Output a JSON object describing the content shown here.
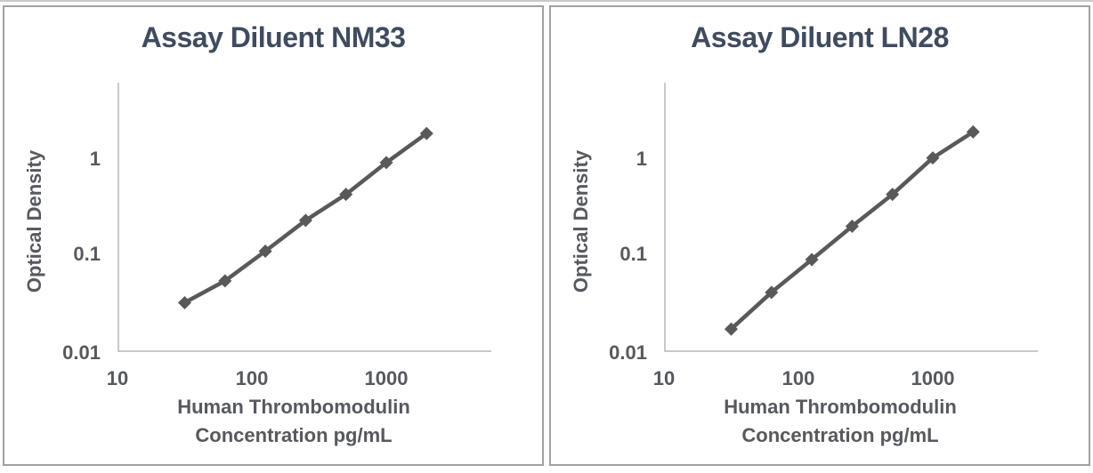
{
  "page": {
    "background": "#ffffff",
    "panel_border_color": "#a1a1a1"
  },
  "colors": {
    "series": "#595959",
    "axis_line": "#b7b7b7",
    "title_text": "#3f4b5e",
    "tick_text": "#56595e"
  },
  "chart_data": [
    {
      "type": "line",
      "title": "Assay Diluent NM33",
      "ylabel": "Optical Density",
      "xlabel_line1": "Human Thrombomodulin",
      "xlabel_line2": "Concentration pg/mL",
      "x_scale": "log",
      "y_scale": "log",
      "x": [
        31.25,
        62.5,
        125,
        250,
        500,
        1000,
        2000
      ],
      "values": [
        0.032,
        0.054,
        0.11,
        0.23,
        0.43,
        0.92,
        1.85
      ],
      "x_ticks": [
        "10",
        "100",
        "1000"
      ],
      "y_ticks": [
        "1",
        "0.1",
        "0.01"
      ],
      "xlim": [
        10,
        6000
      ],
      "ylim": [
        0.01,
        6.3
      ],
      "marker": "diamond",
      "grid": false,
      "legend": "none"
    },
    {
      "type": "line",
      "title": "Assay Diluent LN28",
      "ylabel": "Optical Density",
      "xlabel_line1": "Human Thrombomodulin",
      "xlabel_line2": "Concentration pg/mL",
      "x_scale": "log",
      "y_scale": "log",
      "x": [
        31.25,
        62.5,
        125,
        250,
        500,
        1000,
        2000
      ],
      "values": [
        0.017,
        0.041,
        0.09,
        0.2,
        0.43,
        1.03,
        1.92
      ],
      "x_ticks": [
        "10",
        "100",
        "1000"
      ],
      "y_ticks": [
        "1",
        "0.1",
        "0.01"
      ],
      "xlim": [
        10,
        6000
      ],
      "ylim": [
        0.01,
        6.3
      ],
      "marker": "diamond",
      "grid": false,
      "legend": "none"
    }
  ]
}
